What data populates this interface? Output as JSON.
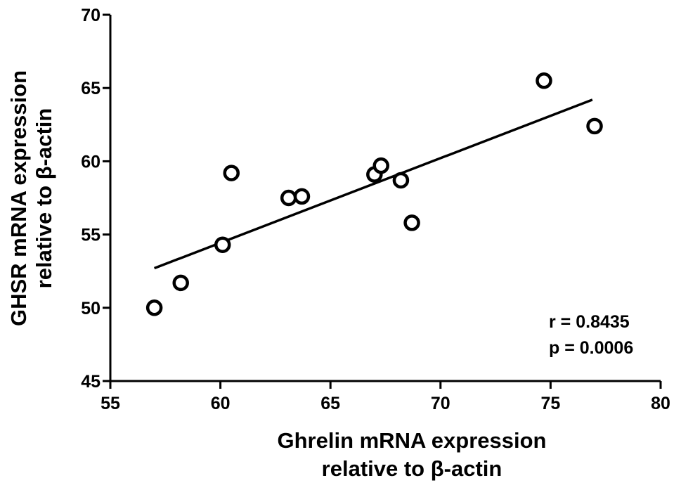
{
  "chart_data": {
    "type": "scatter",
    "title": "",
    "xlabel_lines": [
      "Ghrelin mRNA expression",
      "relative to β-actin"
    ],
    "ylabel_lines": [
      "GHSR mRNA expression",
      "relative to β-actin"
    ],
    "xlim": [
      55,
      80
    ],
    "ylim": [
      45,
      70
    ],
    "xticks": [
      "55",
      "60",
      "65",
      "70",
      "75",
      "80"
    ],
    "yticks": [
      "45",
      "50",
      "55",
      "60",
      "65",
      "70"
    ],
    "grid": false,
    "marker": "open-circle",
    "points": [
      {
        "x": 57.0,
        "y": 50.0
      },
      {
        "x": 58.2,
        "y": 51.7
      },
      {
        "x": 60.1,
        "y": 54.3
      },
      {
        "x": 60.5,
        "y": 59.2
      },
      {
        "x": 63.1,
        "y": 57.5
      },
      {
        "x": 63.7,
        "y": 57.6
      },
      {
        "x": 67.0,
        "y": 59.1
      },
      {
        "x": 67.3,
        "y": 59.7
      },
      {
        "x": 68.2,
        "y": 58.7
      },
      {
        "x": 68.7,
        "y": 55.8
      },
      {
        "x": 74.7,
        "y": 65.5
      },
      {
        "x": 77.0,
        "y": 62.4
      }
    ],
    "regression_line": {
      "x": [
        57.0,
        76.9
      ],
      "y": [
        52.7,
        64.2
      ]
    },
    "annotations": [
      "r = 0.8435",
      "p = 0.0006"
    ]
  }
}
